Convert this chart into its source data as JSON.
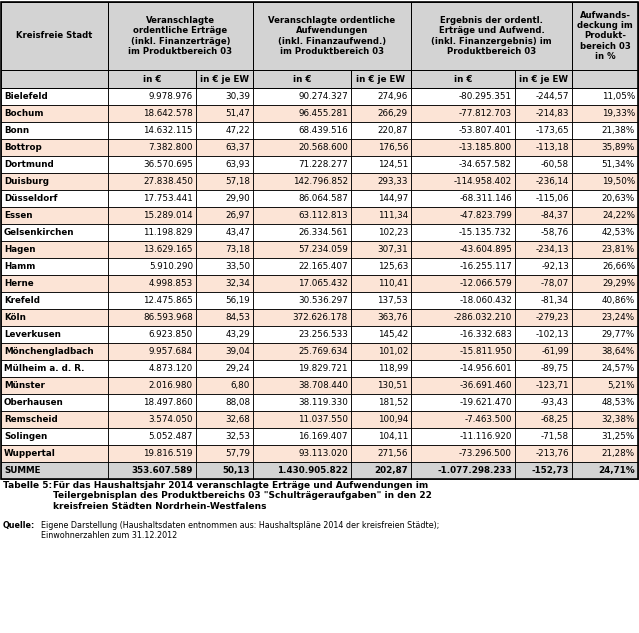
{
  "cities": [
    "Bielefeld",
    "Bochum",
    "Bonn",
    "Bottrop",
    "Dortmund",
    "Duisburg",
    "Düsseldorf",
    "Essen",
    "Gelsenkirchen",
    "Hagen",
    "Hamm",
    "Herne",
    "Krefeld",
    "Köln",
    "Leverkusen",
    "Mönchengladbach",
    "Mülheim a. d. R.",
    "Münster",
    "Oberhausen",
    "Remscheid",
    "Solingen",
    "Wuppertal",
    "SUMME"
  ],
  "col1_eur": [
    "9.978.976",
    "18.642.578",
    "14.632.115",
    "7.382.800",
    "36.570.695",
    "27.838.450",
    "17.753.441",
    "15.289.014",
    "11.198.829",
    "13.629.165",
    "5.910.290",
    "4.998.853",
    "12.475.865",
    "86.593.968",
    "6.923.850",
    "9.957.684",
    "4.873.120",
    "2.016.980",
    "18.497.860",
    "3.574.050",
    "5.052.487",
    "19.816.519",
    "353.607.589"
  ],
  "col1_ew": [
    "30,39",
    "51,47",
    "47,22",
    "63,37",
    "63,93",
    "57,18",
    "29,90",
    "26,97",
    "43,47",
    "73,18",
    "33,50",
    "32,34",
    "56,19",
    "84,53",
    "43,29",
    "39,04",
    "29,24",
    "6,80",
    "88,08",
    "32,68",
    "32,53",
    "57,79",
    "50,13"
  ],
  "col2_eur": [
    "90.274.327",
    "96.455.281",
    "68.439.516",
    "20.568.600",
    "71.228.277",
    "142.796.852",
    "86.064.587",
    "63.112.813",
    "26.334.561",
    "57.234.059",
    "22.165.407",
    "17.065.432",
    "30.536.297",
    "372.626.178",
    "23.256.533",
    "25.769.634",
    "19.829.721",
    "38.708.440",
    "38.119.330",
    "11.037.550",
    "16.169.407",
    "93.113.020",
    "1.430.905.822"
  ],
  "col2_ew": [
    "274,96",
    "266,29",
    "220,87",
    "176,56",
    "124,51",
    "293,33",
    "144,97",
    "111,34",
    "102,23",
    "307,31",
    "125,63",
    "110,41",
    "137,53",
    "363,76",
    "145,42",
    "101,02",
    "118,99",
    "130,51",
    "181,52",
    "100,94",
    "104,11",
    "271,56",
    "202,87"
  ],
  "col3_eur": [
    "-80.295.351",
    "-77.812.703",
    "-53.807.401",
    "-13.185.800",
    "-34.657.582",
    "-114.958.402",
    "-68.311.146",
    "-47.823.799",
    "-15.135.732",
    "-43.604.895",
    "-16.255.117",
    "-12.066.579",
    "-18.060.432",
    "-286.032.210",
    "-16.332.683",
    "-15.811.950",
    "-14.956.601",
    "-36.691.460",
    "-19.621.470",
    "-7.463.500",
    "-11.116.920",
    "-73.296.500",
    "-1.077.298.233"
  ],
  "col3_ew": [
    "-244,57",
    "-214,83",
    "-173,65",
    "-113,18",
    "-60,58",
    "-236,14",
    "-115,06",
    "-84,37",
    "-58,76",
    "-234,13",
    "-92,13",
    "-78,07",
    "-81,34",
    "-279,23",
    "-102,13",
    "-61,99",
    "-89,75",
    "-123,71",
    "-93,43",
    "-68,25",
    "-71,58",
    "-213,76",
    "-152,73"
  ],
  "col4_pct": [
    "11,05%",
    "19,33%",
    "21,38%",
    "35,89%",
    "51,34%",
    "19,50%",
    "20,63%",
    "24,22%",
    "42,53%",
    "23,81%",
    "26,66%",
    "29,29%",
    "40,86%",
    "23,24%",
    "29,77%",
    "38,64%",
    "24,57%",
    "5,21%",
    "48,53%",
    "32,38%",
    "31,25%",
    "21,28%",
    "24,71%"
  ],
  "header_bg": "#d3d3d3",
  "city_bg_even": "#ffffff",
  "city_bg_odd": "#fce4d6",
  "summe_bg": "#d3d3d3",
  "caption_bold": "Tabelle 5:",
  "caption_text": "Für das Haushaltsjahr 2014 veranschlagte Erträge und Aufwendungen im\nTeilergebnisplan des Produktbereichs 03 \"Schulträgeraufgaben\" in den 22\nkreisfreien Städten Nordrhein-Westfalens",
  "source_bold": "Quelle:",
  "source_text": "Eigene Darstellung (Haushaltsdaten entnommen aus: Haushaltspläne 2014 der kreisfreien Städte);\nEinwohnerzahlen zum 31.12.2012"
}
